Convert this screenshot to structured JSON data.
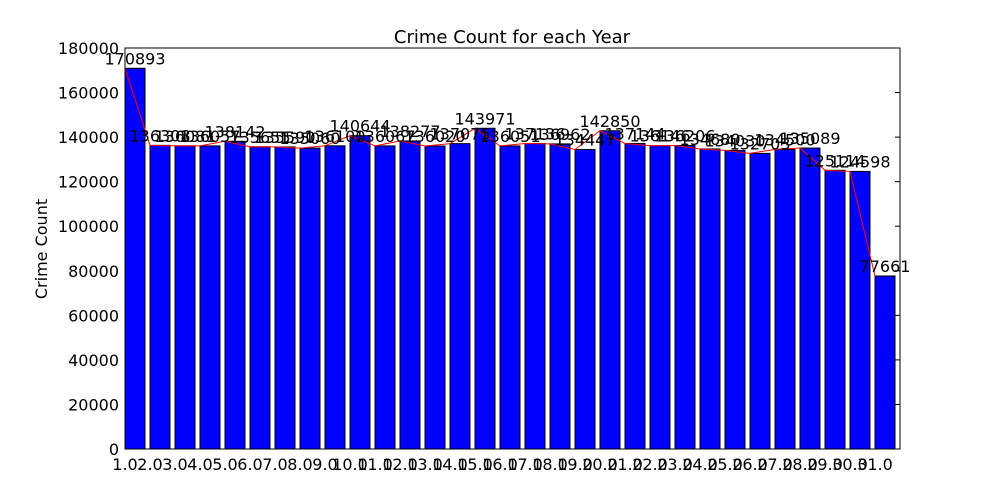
{
  "chart_data": {
    "type": "bar",
    "title": "Crime Count for each Year",
    "ylabel": "Crime Count",
    "categories": [
      "1.0",
      "2.0",
      "3.0",
      "4.0",
      "5.0",
      "6.0",
      "7.0",
      "8.0",
      "9.0",
      "10.0",
      "11.0",
      "12.0",
      "13.0",
      "14.0",
      "15.0",
      "16.0",
      "17.0",
      "18.0",
      "19.0",
      "20.0",
      "21.0",
      "22.0",
      "23.0",
      "24.0",
      "25.0",
      "26.0",
      "27.0",
      "28.0",
      "29.0",
      "30.0",
      "31.0"
    ],
    "values": [
      170893,
      136308,
      136081,
      136057,
      138142,
      135655,
      135590,
      135060,
      136100,
      140644,
      136067,
      138277,
      136020,
      137075,
      143971,
      136051,
      137136,
      136962,
      134447,
      142850,
      137144,
      136146,
      136206,
      134680,
      134030,
      132703,
      134500,
      135089,
      125114,
      124598,
      77661
    ],
    "color": "#0000ff",
    "line_color": "#ff0000",
    "ylim": [
      0,
      180000
    ],
    "yticks": [
      0,
      20000,
      40000,
      60000,
      80000,
      100000,
      120000,
      140000,
      160000,
      180000
    ],
    "grid": false
  }
}
